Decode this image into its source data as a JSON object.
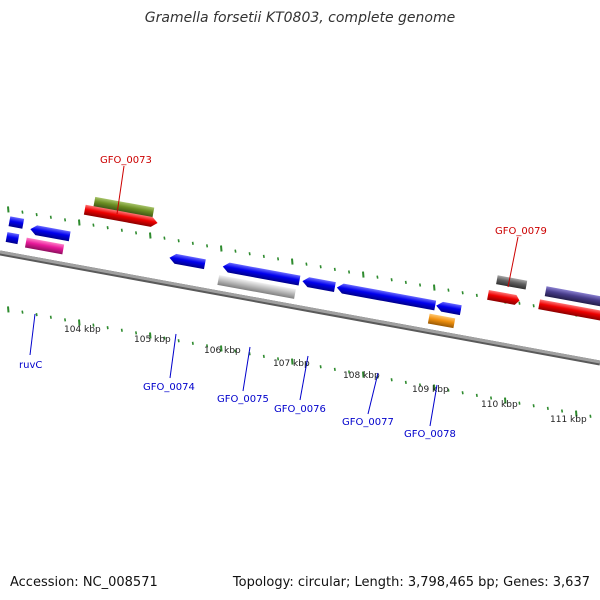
{
  "title": "Gramella forsetii KT0803, complete genome",
  "accession": "Accession: NC_008571",
  "summary": "Topology: circular; Length: 3,798,465 bp; Genes: 3,637",
  "kbp_ticks": [
    "104 kbp",
    "105 kbp",
    "106 kbp",
    "107 kbp",
    "108 kbp",
    "109 kbp",
    "110 kbp",
    "111 kbp"
  ],
  "labels": {
    "top": [
      "GFO_0073",
      "GFO_0079"
    ],
    "bottom": [
      "ruvC",
      "GFO_0074",
      "GFO_0075",
      "GFO_0076",
      "GFO_0077",
      "GFO_0078"
    ]
  },
  "colors": {
    "backbone": "#8c8c8c",
    "top_label": "#cc0000",
    "bottom_label": "#0000cc",
    "tick": "#2e8b2e",
    "gene_blue": "#0000ee",
    "gene_red": "#ee0000",
    "gene_olive": "#6b8e23",
    "gene_magenta": "#e8199a",
    "gene_silver": "#c0c0c0",
    "gene_orange": "#f0900e",
    "gene_gray": "#606060",
    "gene_slate": "#483d8b"
  }
}
